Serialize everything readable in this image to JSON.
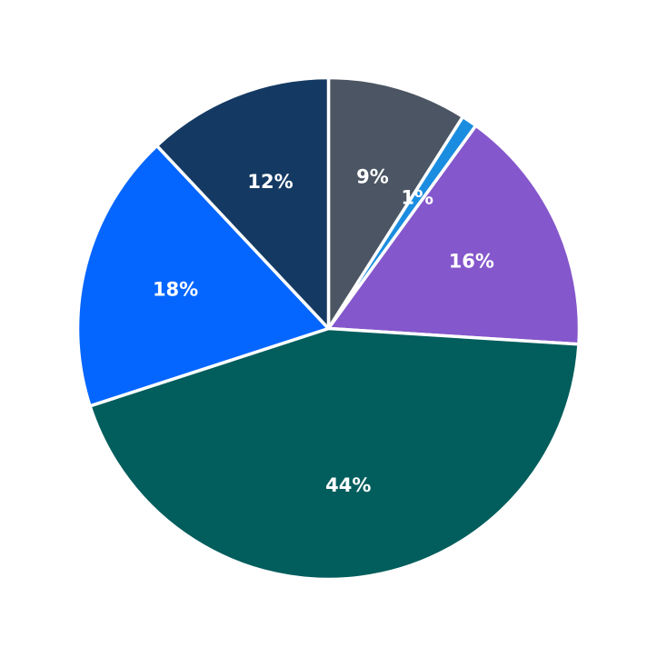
{
  "chart_data": {
    "type": "pie",
    "title": "",
    "start_angle_deg": 90,
    "direction": "clockwise",
    "slices": [
      {
        "label": "9%",
        "value": 9,
        "color": "#4b5563"
      },
      {
        "label": "1%",
        "value": 1,
        "color": "#1b8de0"
      },
      {
        "label": "16%",
        "value": 16,
        "color": "#8457cc"
      },
      {
        "label": "44%",
        "value": 44,
        "color": "#025d5d"
      },
      {
        "label": "18%",
        "value": 18,
        "color": "#0566ff"
      },
      {
        "label": "12%",
        "value": 12,
        "color": "#143a63"
      }
    ]
  }
}
